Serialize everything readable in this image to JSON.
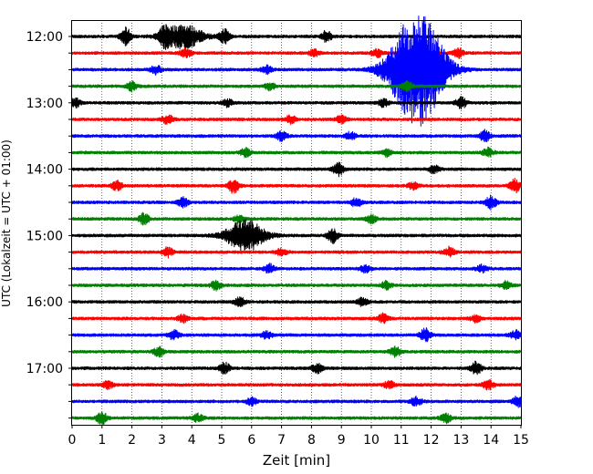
{
  "chart_data": {
    "type": "line",
    "title": "",
    "xlabel": "Zeit  [min]",
    "ylabel": "UTC (Lokalzeit = UTC + 01:00)",
    "xlim": [
      0,
      15
    ],
    "x_ticks": [
      "0",
      "1",
      "2",
      "3",
      "4",
      "5",
      "6",
      "7",
      "8",
      "9",
      "10",
      "11",
      "12",
      "13",
      "14",
      "15"
    ],
    "y_ticks": [
      "12:00",
      "13:00",
      "14:00",
      "15:00",
      "16:00",
      "17:00"
    ],
    "grid_x": true,
    "trace_interval_min": 15,
    "trace_colors": [
      "#000000",
      "#ff0000",
      "#0000ff",
      "#008000"
    ],
    "series": [
      {
        "start": "12:00",
        "color": "#000000",
        "events": [
          {
            "t": 1.8,
            "amp": 9
          },
          {
            "t": 3.1,
            "amp": 8
          },
          {
            "t": 3.7,
            "amp": 13
          },
          {
            "t": 5.1,
            "amp": 8
          },
          {
            "t": 8.5,
            "amp": 6
          }
        ]
      },
      {
        "start": "12:15",
        "color": "#ff0000",
        "events": [
          {
            "t": 3.8,
            "amp": 5
          },
          {
            "t": 8.1,
            "amp": 4
          },
          {
            "t": 10.2,
            "amp": 4
          },
          {
            "t": 12.9,
            "amp": 5
          }
        ]
      },
      {
        "start": "12:30",
        "color": "#0000ff",
        "events": [
          {
            "t": 2.8,
            "amp": 5
          },
          {
            "t": 6.5,
            "amp": 4
          },
          {
            "t": 11.3,
            "amp": 38
          },
          {
            "t": 11.8,
            "amp": 32
          }
        ]
      },
      {
        "start": "12:45",
        "color": "#008000",
        "events": [
          {
            "t": 2.0,
            "amp": 5
          },
          {
            "t": 6.6,
            "amp": 4
          },
          {
            "t": 11.2,
            "amp": 5
          }
        ]
      },
      {
        "start": "13:00",
        "color": "#000000",
        "events": [
          {
            "t": 0.1,
            "amp": 5
          },
          {
            "t": 5.2,
            "amp": 4
          },
          {
            "t": 10.4,
            "amp": 4
          },
          {
            "t": 13.0,
            "amp": 6
          }
        ]
      },
      {
        "start": "13:15",
        "color": "#ff0000",
        "events": [
          {
            "t": 3.2,
            "amp": 5
          },
          {
            "t": 7.3,
            "amp": 4
          },
          {
            "t": 9.0,
            "amp": 4
          }
        ]
      },
      {
        "start": "13:30",
        "color": "#0000ff",
        "events": [
          {
            "t": 7.0,
            "amp": 5
          },
          {
            "t": 9.3,
            "amp": 4
          },
          {
            "t": 13.8,
            "amp": 6
          }
        ]
      },
      {
        "start": "13:45",
        "color": "#008000",
        "events": [
          {
            "t": 5.8,
            "amp": 5
          },
          {
            "t": 10.5,
            "amp": 4
          },
          {
            "t": 13.9,
            "amp": 5
          }
        ]
      },
      {
        "start": "14:00",
        "color": "#000000",
        "events": [
          {
            "t": 8.9,
            "amp": 7
          },
          {
            "t": 12.1,
            "amp": 4
          }
        ]
      },
      {
        "start": "14:15",
        "color": "#ff0000",
        "events": [
          {
            "t": 1.5,
            "amp": 5
          },
          {
            "t": 5.4,
            "amp": 8
          },
          {
            "t": 11.4,
            "amp": 4
          },
          {
            "t": 14.8,
            "amp": 7
          }
        ]
      },
      {
        "start": "14:30",
        "color": "#0000ff",
        "events": [
          {
            "t": 3.7,
            "amp": 5
          },
          {
            "t": 9.5,
            "amp": 5
          },
          {
            "t": 14.0,
            "amp": 7
          }
        ]
      },
      {
        "start": "14:45",
        "color": "#008000",
        "events": [
          {
            "t": 2.4,
            "amp": 6
          },
          {
            "t": 5.6,
            "amp": 4
          },
          {
            "t": 10.0,
            "amp": 4
          }
        ]
      },
      {
        "start": "15:00",
        "color": "#000000",
        "events": [
          {
            "t": 5.8,
            "amp": 17
          },
          {
            "t": 8.7,
            "amp": 8
          }
        ]
      },
      {
        "start": "15:15",
        "color": "#ff0000",
        "events": [
          {
            "t": 3.2,
            "amp": 5
          },
          {
            "t": 7.0,
            "amp": 4
          },
          {
            "t": 12.6,
            "amp": 5
          }
        ]
      },
      {
        "start": "15:30",
        "color": "#0000ff",
        "events": [
          {
            "t": 6.6,
            "amp": 5
          },
          {
            "t": 9.8,
            "amp": 4
          },
          {
            "t": 13.7,
            "amp": 4
          }
        ]
      },
      {
        "start": "15:45",
        "color": "#008000",
        "events": [
          {
            "t": 4.8,
            "amp": 5
          },
          {
            "t": 10.5,
            "amp": 4
          },
          {
            "t": 14.5,
            "amp": 4
          }
        ]
      },
      {
        "start": "16:00",
        "color": "#000000",
        "events": [
          {
            "t": 5.6,
            "amp": 5
          },
          {
            "t": 9.7,
            "amp": 4
          }
        ]
      },
      {
        "start": "16:15",
        "color": "#ff0000",
        "events": [
          {
            "t": 3.7,
            "amp": 4
          },
          {
            "t": 10.4,
            "amp": 5
          },
          {
            "t": 13.5,
            "amp": 4
          }
        ]
      },
      {
        "start": "16:30",
        "color": "#0000ff",
        "events": [
          {
            "t": 3.4,
            "amp": 5
          },
          {
            "t": 6.5,
            "amp": 4
          },
          {
            "t": 11.8,
            "amp": 7
          },
          {
            "t": 14.8,
            "amp": 5
          }
        ]
      },
      {
        "start": "16:45",
        "color": "#008000",
        "events": [
          {
            "t": 2.9,
            "amp": 5
          },
          {
            "t": 10.8,
            "amp": 5
          }
        ]
      },
      {
        "start": "17:00",
        "color": "#000000",
        "events": [
          {
            "t": 5.1,
            "amp": 6
          },
          {
            "t": 8.2,
            "amp": 5
          },
          {
            "t": 13.5,
            "amp": 7
          }
        ]
      },
      {
        "start": "17:15",
        "color": "#ff0000",
        "events": [
          {
            "t": 1.2,
            "amp": 4
          },
          {
            "t": 10.6,
            "amp": 4
          },
          {
            "t": 13.9,
            "amp": 5
          }
        ]
      },
      {
        "start": "17:30",
        "color": "#0000ff",
        "events": [
          {
            "t": 6.0,
            "amp": 4
          },
          {
            "t": 11.5,
            "amp": 5
          },
          {
            "t": 14.9,
            "amp": 6
          }
        ]
      },
      {
        "start": "17:45",
        "color": "#008000",
        "events": [
          {
            "t": 1.0,
            "amp": 7
          },
          {
            "t": 4.2,
            "amp": 4
          },
          {
            "t": 12.5,
            "amp": 5
          }
        ]
      }
    ]
  }
}
